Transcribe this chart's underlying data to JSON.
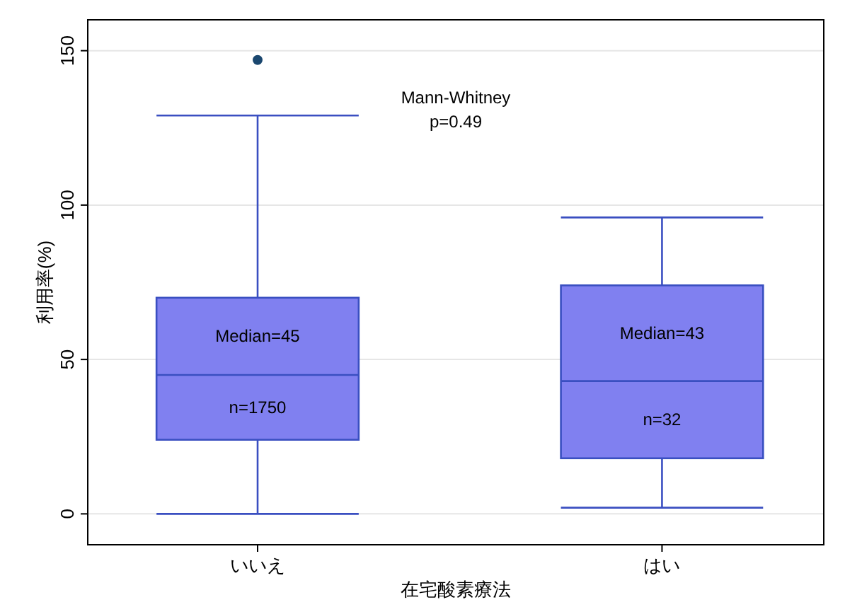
{
  "chart_data": {
    "type": "box",
    "xlabel": "在宅酸素療法",
    "ylabel": "利用率(%)",
    "categories": [
      "いいえ",
      "はい"
    ],
    "boxes": [
      {
        "low": 0,
        "q1": 24,
        "median": 45,
        "q3": 70,
        "high": 129,
        "outliers": [
          147
        ]
      },
      {
        "low": 2,
        "q1": 18,
        "median": 43,
        "q3": 74,
        "high": 96
      }
    ],
    "color": "#8080f0",
    "ylim": [
      -10,
      160
    ],
    "yticks": [
      0,
      50,
      100,
      150
    ],
    "grid": "y",
    "annotations": [
      "Median=45",
      "n=1750",
      "Median=43",
      "n=32",
      "Mann-Whitney\np=0.49"
    ]
  }
}
